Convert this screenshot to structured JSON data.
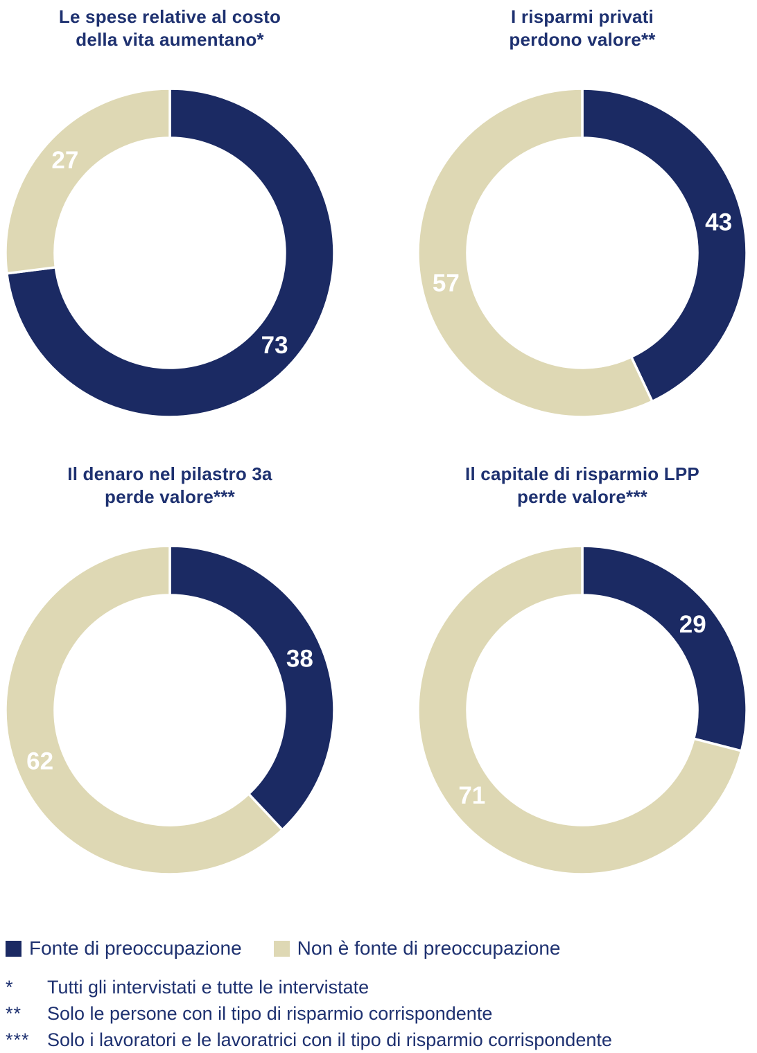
{
  "colors": {
    "concern": "#1B2A63",
    "no_concern": "#DED8B4",
    "label_text": "#FFFFFF",
    "title_text": "#1E3170",
    "background": "#FFFFFF"
  },
  "chart_data": [
    {
      "type": "pie",
      "subtype": "donut",
      "title": "Le spese relative al costo della vita aumentano*",
      "title_lines": [
        "Le spese relative al costo",
        "della vita aumentano*"
      ],
      "start_angle_deg": 0,
      "direction": "clockwise",
      "slices": [
        {
          "label": "Fonte di preoccupazione",
          "value": 73,
          "color": "concern"
        },
        {
          "label": "Non è fonte di preoccupazione",
          "value": 27,
          "color": "no_concern"
        }
      ]
    },
    {
      "type": "pie",
      "subtype": "donut",
      "title": "I risparmi privati perdono valore**",
      "title_lines": [
        "I risparmi privati",
        "perdono valore**"
      ],
      "start_angle_deg": 0,
      "direction": "clockwise",
      "slices": [
        {
          "label": "Fonte di preoccupazione",
          "value": 43,
          "color": "concern"
        },
        {
          "label": "Non è fonte di preoccupazione",
          "value": 57,
          "color": "no_concern"
        }
      ]
    },
    {
      "type": "pie",
      "subtype": "donut",
      "title": "Il denaro nel pilastro 3a perde valore***",
      "title_lines": [
        "Il denaro nel pilastro 3a",
        "perde valore***"
      ],
      "start_angle_deg": 0,
      "direction": "clockwise",
      "slices": [
        {
          "label": "Fonte di preoccupazione",
          "value": 38,
          "color": "concern"
        },
        {
          "label": "Non è fonte di preoccupazione",
          "value": 62,
          "color": "no_concern"
        }
      ]
    },
    {
      "type": "pie",
      "subtype": "donut",
      "title": "Il capitale di risparmio LPP perde valore***",
      "title_lines": [
        "Il capitale di risparmio LPP",
        "perde valore***"
      ],
      "start_angle_deg": 0,
      "direction": "clockwise",
      "slices": [
        {
          "label": "Fonte di preoccupazione",
          "value": 29,
          "color": "concern"
        },
        {
          "label": "Non è fonte di preoccupazione",
          "value": 71,
          "color": "no_concern"
        }
      ]
    }
  ],
  "legend": {
    "position": "bottom",
    "items": [
      {
        "label": "Fonte di preoccupazione",
        "color": "concern"
      },
      {
        "label": "Non è fonte di preoccupazione",
        "color": "no_concern"
      }
    ]
  },
  "footnotes": [
    {
      "marker": "*",
      "text": "Tutti gli intervistati e tutte le intervistate"
    },
    {
      "marker": "**",
      "text": "Solo le persone con il tipo di risparmio corrispondente"
    },
    {
      "marker": "***",
      "text": "Solo i lavoratori e le lavoratrici con il tipo di risparmio corrispondente"
    }
  ]
}
